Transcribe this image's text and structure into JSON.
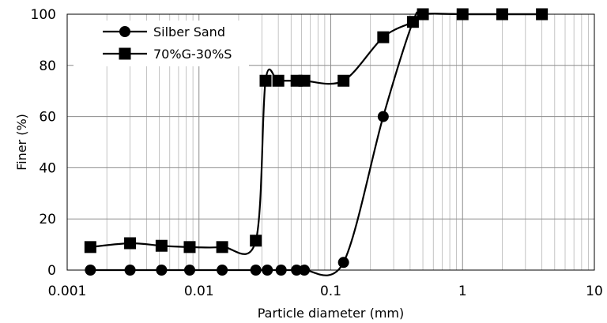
{
  "chart_data": {
    "type": "line",
    "title": "",
    "xlabel": "Particle diameter (mm)",
    "ylabel": "Finer (%)",
    "x_scale": "log",
    "xlim": [
      0.001,
      10
    ],
    "ylim": [
      0,
      100
    ],
    "x_ticks": [
      "0.001",
      "0.01",
      "0.1",
      "1",
      "10"
    ],
    "y_ticks": [
      "0",
      "20",
      "40",
      "60",
      "80",
      "100"
    ],
    "grid": true,
    "legend_position": "top-left",
    "series": [
      {
        "name": "Silber Sand",
        "marker": "circle",
        "x": [
          0.0015,
          0.003,
          0.0052,
          0.0085,
          0.015,
          0.027,
          0.033,
          0.042,
          0.055,
          0.063,
          0.125,
          0.25,
          0.42,
          0.5,
          1,
          2,
          4
        ],
        "y": [
          0,
          0,
          0,
          0,
          0,
          0,
          0,
          0,
          0,
          0,
          3,
          60,
          97,
          100,
          100,
          100,
          100
        ]
      },
      {
        "name": "70%G-30%S",
        "marker": "square",
        "x": [
          0.0015,
          0.003,
          0.0052,
          0.0085,
          0.015,
          0.027,
          0.032,
          0.04,
          0.055,
          0.063,
          0.125,
          0.25,
          0.42,
          0.5,
          1,
          2,
          4
        ],
        "y": [
          9,
          10.5,
          9.5,
          9,
          9,
          11.5,
          74,
          74,
          74,
          74,
          74,
          91,
          97,
          100,
          100,
          100,
          100
        ]
      }
    ]
  }
}
